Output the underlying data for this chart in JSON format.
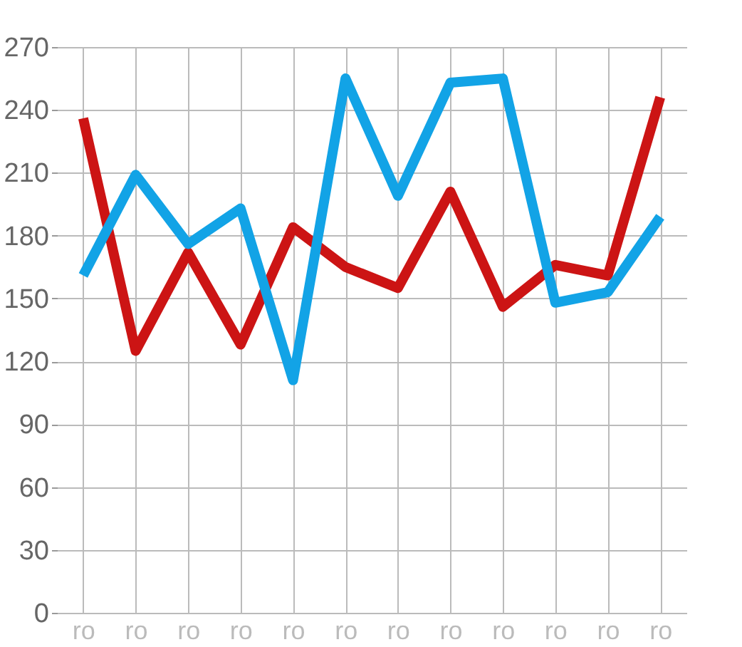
{
  "chart_data": {
    "type": "line",
    "categories": [
      "ro",
      "ro",
      "ro",
      "ro",
      "ro",
      "ro",
      "ro",
      "ro",
      "ro",
      "ro",
      "ro",
      "ro"
    ],
    "series": [
      {
        "color": "#cc1414",
        "values": [
          236,
          125,
          172,
          128,
          184,
          165,
          155,
          201,
          146,
          166,
          161,
          246
        ]
      },
      {
        "color": "#12a3e6",
        "values": [
          161,
          209,
          176,
          193,
          111,
          255,
          199,
          253,
          255,
          148,
          153,
          189
        ]
      }
    ],
    "ylim": [
      0,
      270
    ],
    "yticks": [
      0,
      30,
      60,
      90,
      120,
      150,
      180,
      210,
      240,
      270
    ],
    "grid": true,
    "line_style": "solid",
    "marker": "none"
  }
}
